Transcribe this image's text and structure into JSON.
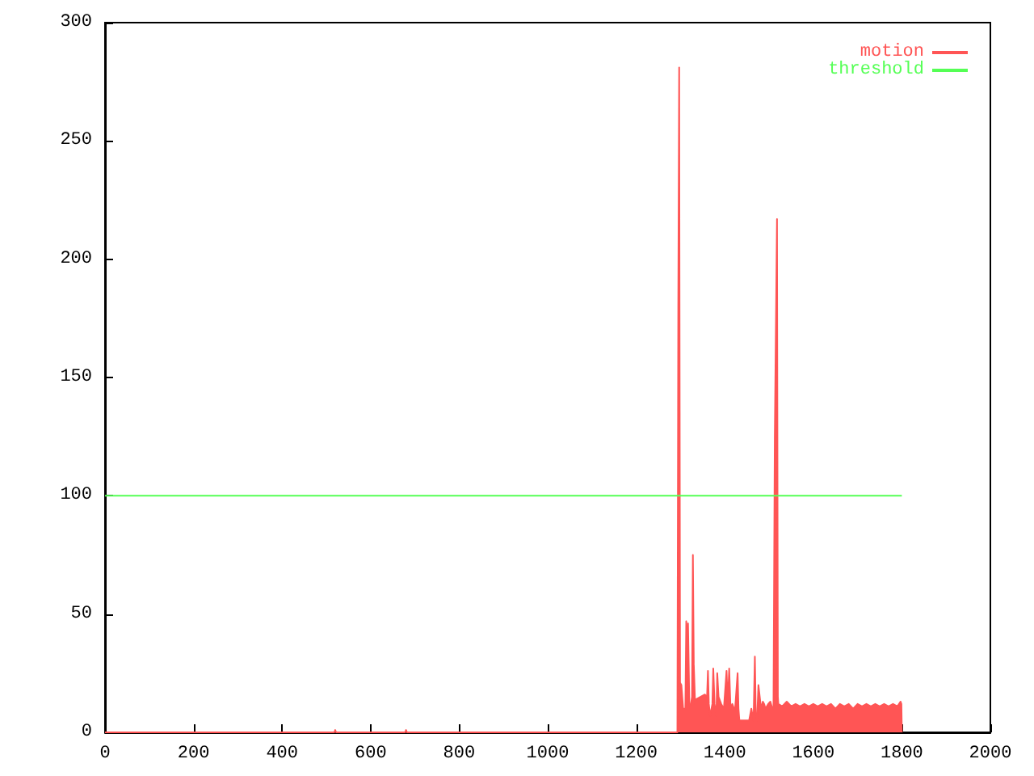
{
  "chart_data": {
    "type": "area",
    "xlim": [
      0,
      2000
    ],
    "xticks": [
      0,
      200,
      400,
      600,
      800,
      1000,
      1200,
      1400,
      1600,
      1800,
      2000
    ],
    "ylim": [
      0,
      300
    ],
    "yticks": [
      0,
      50,
      100,
      150,
      200,
      250,
      300
    ],
    "grid": false,
    "legend": "top right",
    "marker": "none",
    "line_style": "solid",
    "series": [
      {
        "name": "motion",
        "color": "#ff5555",
        "x": [
          0,
          518,
          520,
          522,
          678,
          680,
          682,
          1293,
          1295,
          1297,
          1299,
          1302,
          1306,
          1311,
          1313,
          1315,
          1317,
          1320,
          1322,
          1326,
          1328,
          1330,
          1333,
          1335,
          1345,
          1355,
          1360,
          1362,
          1364,
          1367,
          1372,
          1374,
          1377,
          1381,
          1383,
          1386,
          1392,
          1398,
          1404,
          1407,
          1410,
          1413,
          1417,
          1423,
          1429,
          1431,
          1433,
          1440,
          1449,
          1455,
          1460,
          1465,
          1468,
          1470,
          1473,
          1476,
          1479,
          1482,
          1486,
          1489,
          1492,
          1498,
          1503,
          1506,
          1510,
          1513,
          1515,
          1518,
          1520,
          1521,
          1530,
          1540,
          1550,
          1560,
          1570,
          1580,
          1590,
          1600,
          1610,
          1620,
          1630,
          1640,
          1650,
          1660,
          1670,
          1680,
          1690,
          1700,
          1710,
          1720,
          1730,
          1740,
          1750,
          1760,
          1770,
          1780,
          1790,
          1797,
          1799,
          1800
        ],
        "values": [
          0,
          0,
          1,
          0,
          0,
          1,
          0,
          0,
          180,
          281,
          21,
          20,
          10,
          10,
          47,
          30,
          46,
          12,
          10,
          15,
          75,
          29,
          12,
          14,
          15,
          16,
          15,
          26,
          12,
          7,
          12,
          27,
          12,
          7,
          25,
          15,
          12,
          10,
          26,
          12,
          27,
          10,
          12,
          9,
          25,
          10,
          5,
          5,
          5,
          5,
          10,
          5,
          32,
          8,
          5,
          20,
          15,
          10,
          13,
          12,
          10,
          12,
          13,
          11,
          10,
          125,
          125,
          217,
          15,
          12,
          11,
          13,
          11,
          12,
          11,
          12,
          11,
          12,
          11,
          12,
          11,
          12,
          10,
          12,
          11,
          12,
          10,
          12,
          11,
          12,
          11,
          12,
          11,
          12,
          11,
          12,
          11,
          13,
          12,
          0
        ]
      },
      {
        "name": "threshold",
        "color": "#55ff55",
        "type": "line",
        "x": [
          0,
          1800
        ],
        "values": [
          100,
          100
        ]
      }
    ]
  }
}
